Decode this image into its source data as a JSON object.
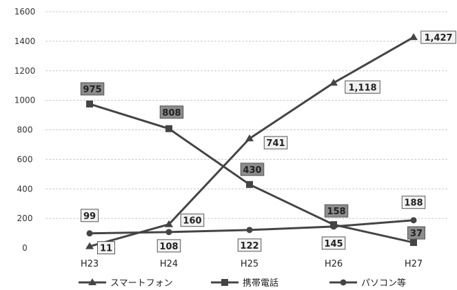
{
  "chart_data": {
    "type": "line",
    "categories": [
      "H23",
      "H24",
      "H25",
      "H26",
      "H27"
    ],
    "ylim": [
      0,
      1600
    ],
    "yticks": [
      0,
      200,
      400,
      600,
      800,
      1000,
      1200,
      1400,
      1600
    ],
    "ytick_labels": [
      "0",
      "200",
      "400",
      "600",
      "800",
      "1000",
      "1200",
      "1400",
      "1600"
    ],
    "grid": true,
    "legend_position": "bottom",
    "series": [
      {
        "name": "スマートフォン",
        "marker": "triangle",
        "values": [
          11,
          160,
          741,
          1118,
          1427
        ],
        "labels": [
          "11",
          "160",
          "741",
          "1,118",
          "1,427"
        ],
        "label_style": "light"
      },
      {
        "name": "携帯電話",
        "marker": "square",
        "values": [
          975,
          808,
          430,
          158,
          37
        ],
        "labels": [
          "975",
          "808",
          "430",
          "158",
          "37"
        ],
        "label_style": "dark"
      },
      {
        "name": "パソコン等",
        "marker": "circle",
        "values": [
          99,
          108,
          122,
          145,
          188
        ],
        "labels": [
          "99",
          "108",
          "122",
          "145",
          "188"
        ],
        "label_style": "light"
      }
    ],
    "colors": {
      "line": "#444444",
      "gridline": "#c8c8c8",
      "label_light_fill": "#f2f2f2",
      "label_dark_fill": "#8c8c8c",
      "label_border": "#555555"
    }
  }
}
